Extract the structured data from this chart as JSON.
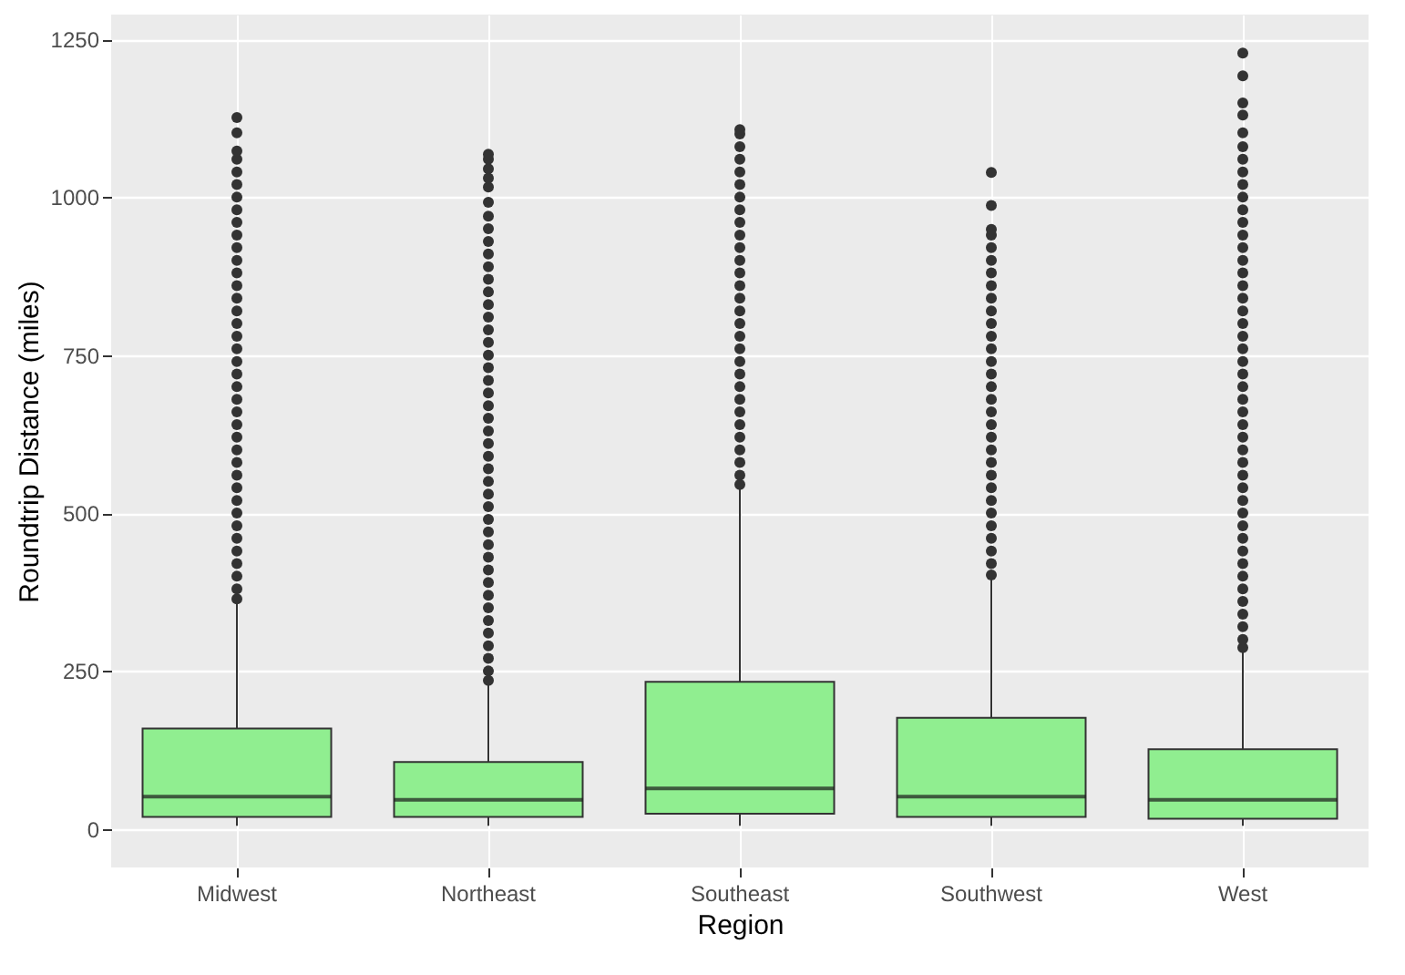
{
  "chart_data": {
    "type": "box",
    "xlabel": "Region",
    "ylabel": "Roundtrip Distance (miles)",
    "categories": [
      "Midwest",
      "Northeast",
      "Southeast",
      "Southwest",
      "West"
    ],
    "ylim": [
      -61,
      1289
    ],
    "yticks": [
      0,
      250,
      500,
      750,
      1000,
      1250
    ],
    "grid": true,
    "series": [
      {
        "color": "#90ee90",
        "boxes": [
          {
            "low": 5,
            "q1": 19,
            "median": 51,
            "q3": 159,
            "high": 360,
            "outliers": [
              364,
              380,
              400,
              420,
              440,
              460,
              480,
              500,
              520,
              540,
              560,
              580,
              600,
              620,
              640,
              660,
              680,
              700,
              720,
              740,
              760,
              780,
              800,
              820,
              840,
              860,
              880,
              900,
              920,
              940,
              960,
              980,
              1000,
              1020,
              1040,
              1060,
              1073,
              1102,
              1126
            ]
          },
          {
            "low": 5,
            "q1": 19,
            "median": 46,
            "q3": 106,
            "high": 232,
            "outliers": [
              235,
              250,
              270,
              290,
              310,
              330,
              350,
              370,
              390,
              410,
              430,
              450,
              470,
              490,
              510,
              530,
              550,
              570,
              590,
              610,
              630,
              650,
              670,
              690,
              710,
              730,
              750,
              770,
              790,
              810,
              830,
              850,
              870,
              890,
              910,
              930,
              950,
              970,
              992,
              1016,
              1030,
              1045,
              1060,
              1068
            ]
          },
          {
            "low": 5,
            "q1": 24,
            "median": 64,
            "q3": 233,
            "high": 540,
            "outliers": [
              545,
              560,
              580,
              600,
              620,
              640,
              660,
              680,
              700,
              720,
              740,
              760,
              780,
              800,
              820,
              840,
              860,
              880,
              900,
              920,
              940,
              960,
              980,
              1000,
              1020,
              1040,
              1060,
              1080,
              1100,
              1107
            ]
          },
          {
            "low": 5,
            "q1": 19,
            "median": 51,
            "q3": 176,
            "high": 398,
            "outliers": [
              402,
              420,
              440,
              460,
              480,
              500,
              520,
              540,
              560,
              580,
              600,
              620,
              640,
              660,
              680,
              700,
              720,
              740,
              760,
              780,
              800,
              820,
              840,
              860,
              880,
              900,
              920,
              940,
              949,
              987,
              1039
            ]
          },
          {
            "low": 5,
            "q1": 16,
            "median": 46,
            "q3": 126,
            "high": 283,
            "outliers": [
              287,
              300,
              320,
              340,
              360,
              380,
              400,
              420,
              440,
              460,
              480,
              500,
              520,
              540,
              560,
              580,
              600,
              620,
              640,
              660,
              680,
              700,
              720,
              740,
              760,
              780,
              800,
              820,
              840,
              860,
              880,
              900,
              920,
              940,
              960,
              980,
              1000,
              1020,
              1040,
              1060,
              1080,
              1102,
              1130,
              1149,
              1192,
              1228
            ]
          }
        ]
      }
    ]
  }
}
